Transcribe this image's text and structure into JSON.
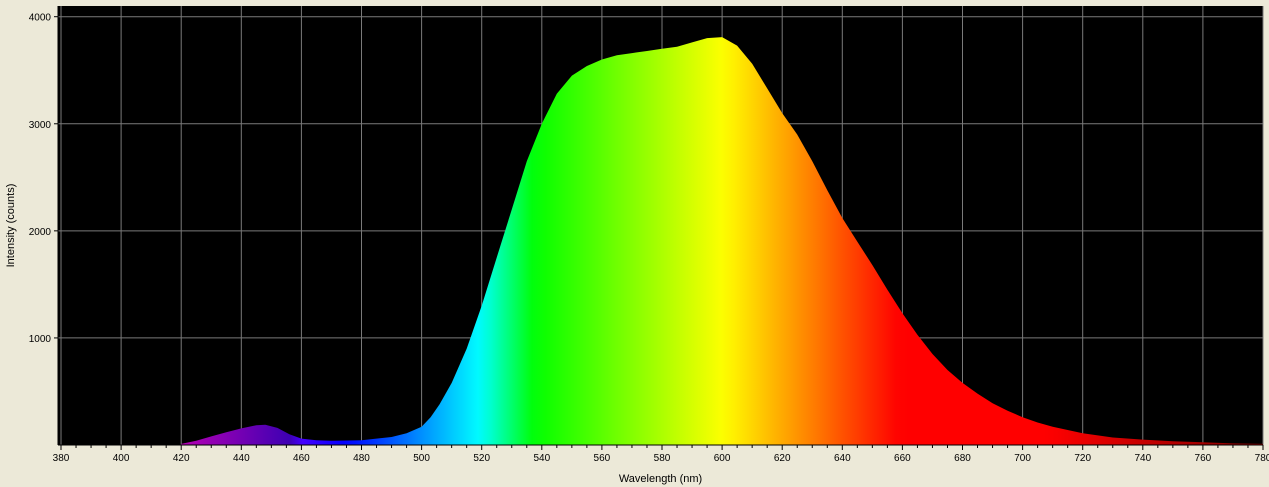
{
  "chart_data": {
    "type": "area",
    "title": "",
    "xlabel": "Wavelength (nm)",
    "ylabel": "Intensity (counts)",
    "xlim": [
      379,
      780
    ],
    "ylim": [
      0,
      4100
    ],
    "grid": true,
    "x_ticks": [
      380,
      400,
      420,
      440,
      460,
      480,
      500,
      520,
      540,
      560,
      580,
      600,
      620,
      640,
      660,
      680,
      700,
      720,
      740,
      760,
      780
    ],
    "y_ticks": [
      1000,
      2000,
      3000,
      4000
    ],
    "colors": {
      "plot_background": "#000000",
      "frame_background": "#ece9d8",
      "grid": "#7a7a7a",
      "fill": "wavelength-spectrum"
    },
    "series": [
      {
        "x": [
          420,
          425,
          430,
          435,
          440,
          445,
          448,
          452,
          456,
          460,
          465,
          470,
          480,
          490,
          495,
          500,
          503,
          506,
          510,
          515,
          520,
          525,
          530,
          535,
          540,
          545,
          550,
          555,
          560,
          565,
          570,
          575,
          580,
          585,
          590,
          595,
          600,
          605,
          610,
          615,
          620,
          625,
          630,
          635,
          640,
          645,
          650,
          655,
          660,
          665,
          670,
          675,
          680,
          685,
          690,
          695,
          700,
          705,
          710,
          720,
          730,
          740,
          750,
          760,
          770,
          780
        ],
        "y": [
          10,
          40,
          80,
          120,
          155,
          185,
          190,
          160,
          100,
          60,
          45,
          40,
          45,
          75,
          110,
          170,
          260,
          380,
          580,
          900,
          1300,
          1750,
          2200,
          2650,
          3000,
          3280,
          3450,
          3540,
          3600,
          3640,
          3660,
          3680,
          3700,
          3720,
          3760,
          3800,
          3810,
          3730,
          3560,
          3330,
          3100,
          2900,
          2650,
          2380,
          2120,
          1900,
          1680,
          1450,
          1230,
          1030,
          850,
          700,
          580,
          480,
          390,
          320,
          260,
          210,
          170,
          110,
          70,
          50,
          35,
          25,
          15,
          10
        ]
      }
    ]
  }
}
